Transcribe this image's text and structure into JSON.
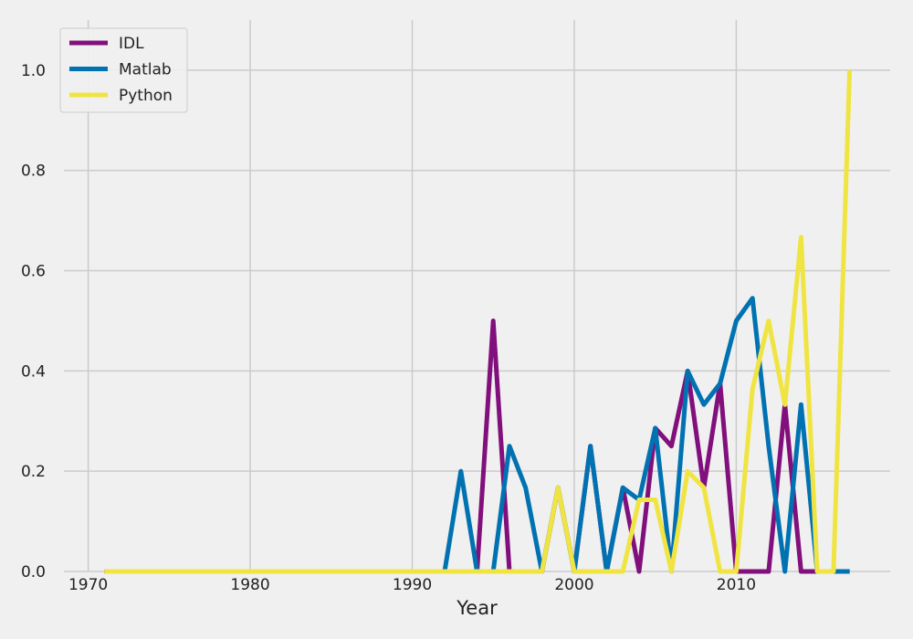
{
  "chart_data": {
    "type": "line",
    "title": "",
    "xlabel": "Year",
    "ylabel": "",
    "xlim": [
      1968.5,
      2019.5
    ],
    "ylim": [
      0,
      1.1
    ],
    "x_ticks": [
      1970,
      1980,
      1990,
      2000,
      2010
    ],
    "y_ticks": [
      0.0,
      0.2,
      0.4,
      0.6,
      0.8,
      1.0
    ],
    "y_tick_labels": [
      "0.0",
      "0.2",
      "0.4",
      "0.6",
      "0.8",
      "1.0"
    ],
    "grid": true,
    "legend_position": "top-left",
    "x": [
      1971,
      1972,
      1973,
      1974,
      1975,
      1976,
      1977,
      1978,
      1979,
      1980,
      1981,
      1982,
      1983,
      1984,
      1985,
      1986,
      1987,
      1988,
      1989,
      1990,
      1991,
      1992,
      1993,
      1994,
      1995,
      1996,
      1997,
      1998,
      1999,
      2000,
      2001,
      2002,
      2003,
      2004,
      2005,
      2006,
      2007,
      2008,
      2009,
      2010,
      2011,
      2012,
      2013,
      2014,
      2015,
      2016,
      2017
    ],
    "series": [
      {
        "name": "IDL",
        "color": "#810f7c",
        "values": [
          0,
          0,
          0,
          0,
          0,
          0,
          0,
          0,
          0,
          0,
          0,
          0,
          0,
          0,
          0,
          0,
          0,
          0,
          0,
          0,
          0,
          0,
          0,
          0,
          0.5,
          0,
          0,
          0,
          0.167,
          0,
          0.25,
          0,
          0.167,
          0,
          0.286,
          0.25,
          0.4,
          0.167,
          0.375,
          0,
          0,
          0,
          0.333,
          0,
          0,
          0,
          0
        ]
      },
      {
        "name": "Matlab",
        "color": "#0072b2",
        "values": [
          0,
          0,
          0,
          0,
          0,
          0,
          0,
          0,
          0,
          0,
          0,
          0,
          0,
          0,
          0,
          0,
          0,
          0,
          0,
          0,
          0,
          0,
          0.2,
          0,
          0,
          0.25,
          0.167,
          0,
          0.167,
          0,
          0.25,
          0,
          0.167,
          0.143,
          0.286,
          0,
          0.4,
          0.333,
          0.375,
          0.5,
          0.545,
          0.25,
          0,
          0.333,
          0,
          0,
          0
        ]
      },
      {
        "name": "Python",
        "color": "#f0e442",
        "values": [
          0,
          0,
          0,
          0,
          0,
          0,
          0,
          0,
          0,
          0,
          0,
          0,
          0,
          0,
          0,
          0,
          0,
          0,
          0,
          0,
          0,
          0,
          0,
          0,
          0,
          0,
          0,
          0,
          0.167,
          0,
          0,
          0,
          0,
          0.143,
          0.143,
          0,
          0.2,
          0.167,
          0,
          0,
          0.364,
          0.5,
          0.333,
          0.667,
          0,
          0,
          1.0
        ]
      }
    ]
  }
}
